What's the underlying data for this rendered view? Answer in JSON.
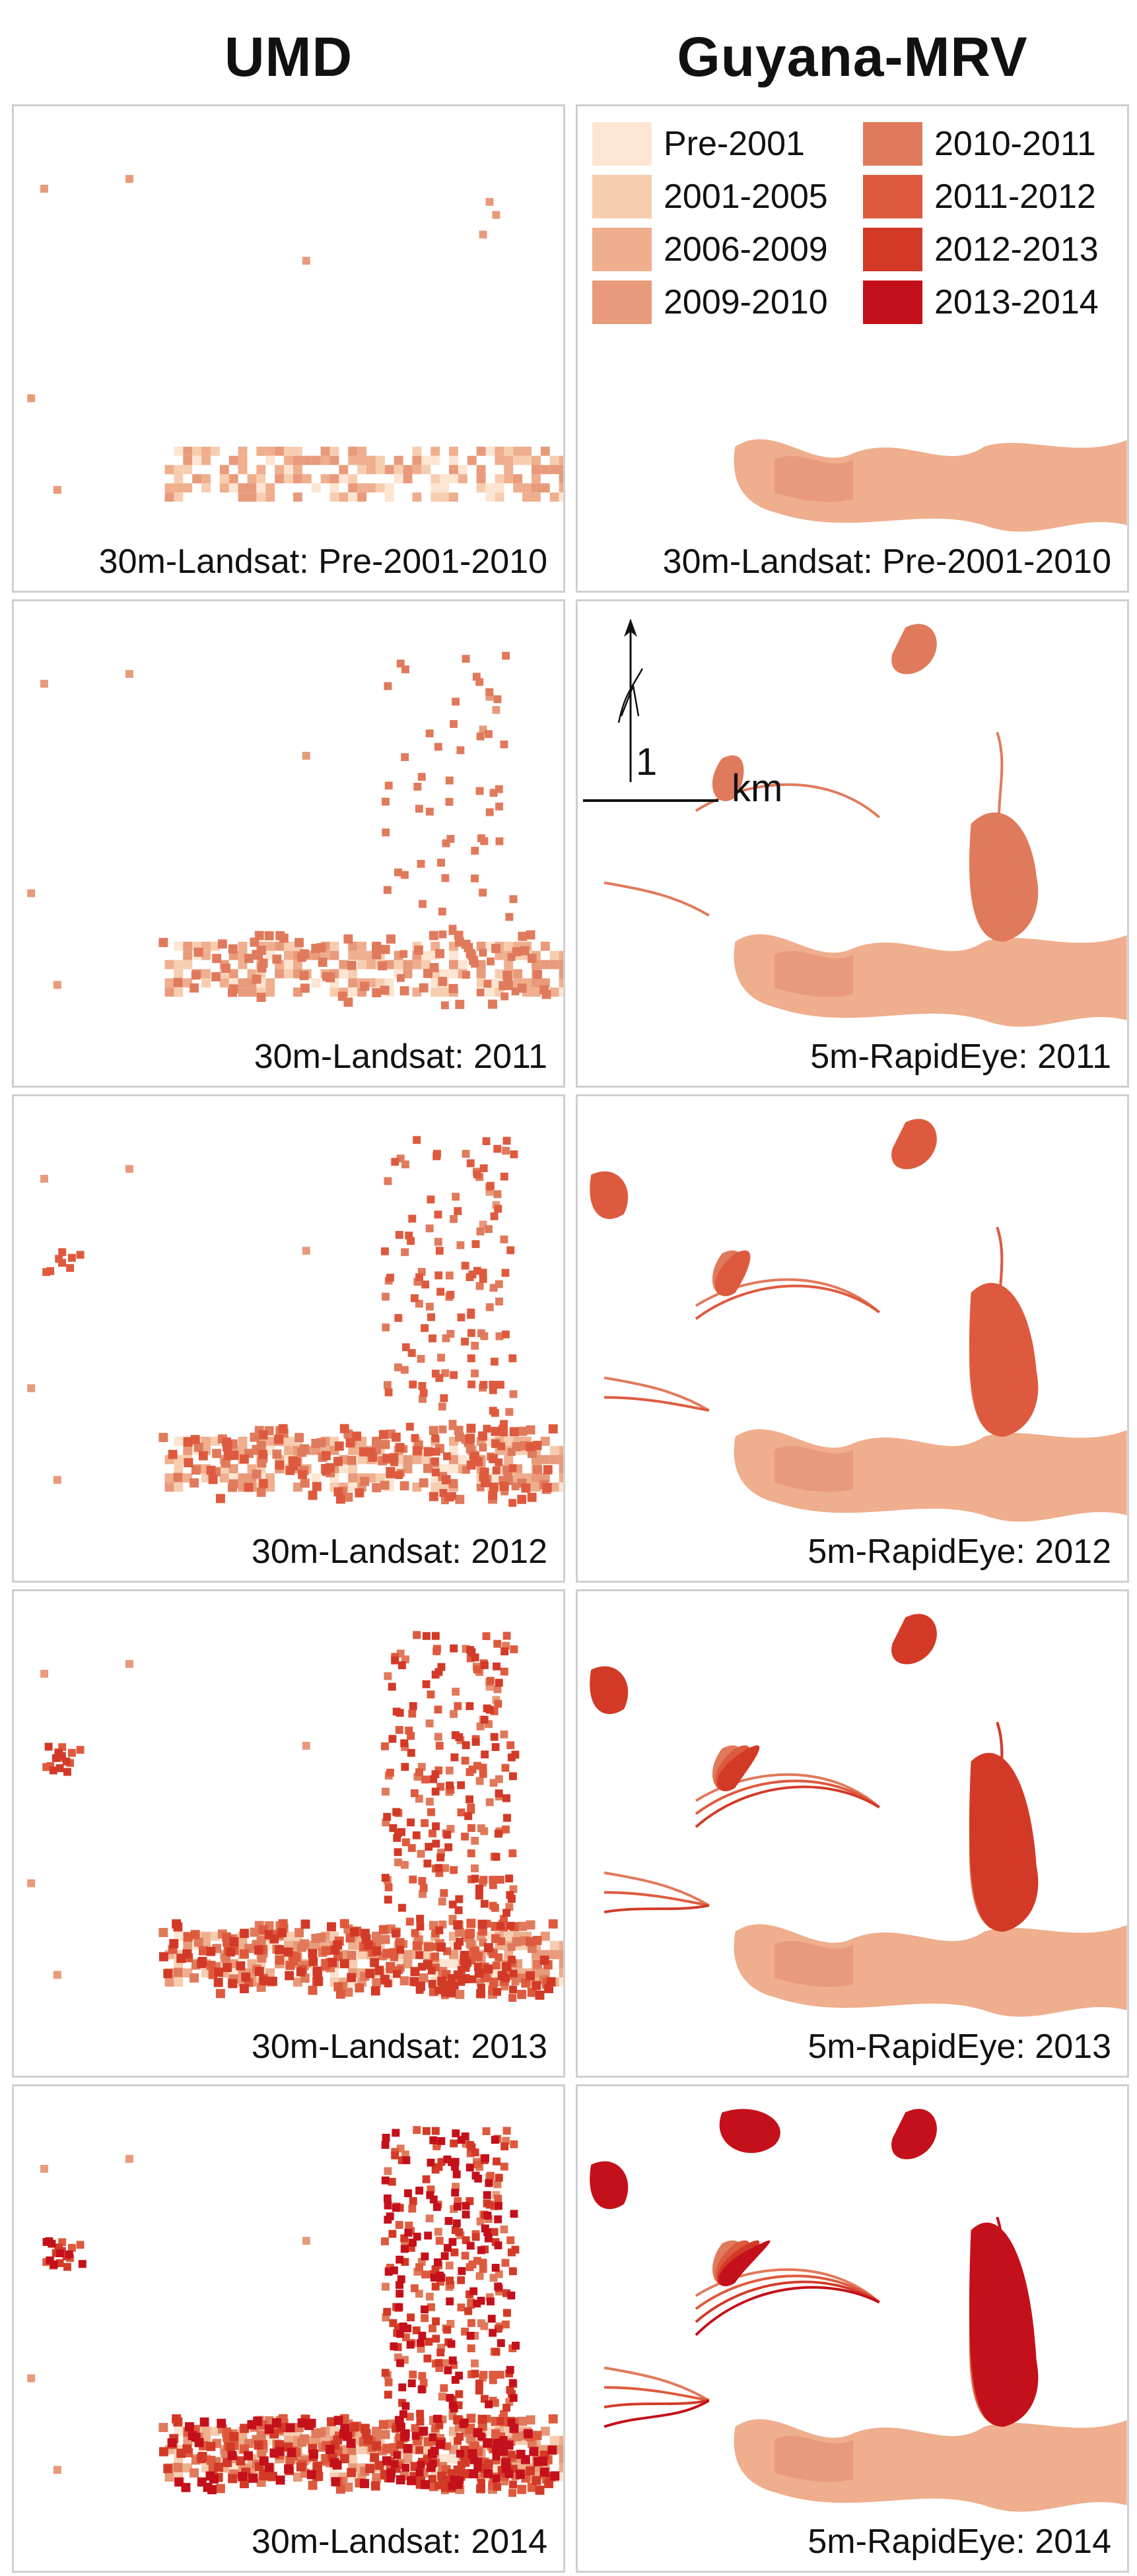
{
  "columns": {
    "left": "UMD",
    "right": "Guyana-MRV"
  },
  "legend": [
    {
      "label": "Pre-2001",
      "color": "#fde5d2"
    },
    {
      "label": "2010-2011",
      "color": "#e07a5c"
    },
    {
      "label": "2001-2005",
      "color": "#f7cdb0"
    },
    {
      "label": "2011-2012",
      "color": "#de5a3e"
    },
    {
      "label": "2006-2009",
      "color": "#efae8d"
    },
    {
      "label": "2012-2013",
      "color": "#d23a27"
    },
    {
      "label": "2009-2010",
      "color": "#e89a7b"
    },
    {
      "label": "2013-2014",
      "color": "#c4101a"
    }
  ],
  "scale_bar": {
    "value": "1",
    "unit": "km"
  },
  "rows": [
    {
      "left_caption": "30m-Landsat: Pre-2001-2010",
      "right_caption": "30m-Landsat: Pre-2001-2010"
    },
    {
      "left_caption": "30m-Landsat: 2011",
      "right_caption": "5m-RapidEye: 2011"
    },
    {
      "left_caption": "30m-Landsat: 2012",
      "right_caption": "5m-RapidEye: 2012"
    },
    {
      "left_caption": "30m-Landsat: 2013",
      "right_caption": "5m-RapidEye: 2013"
    },
    {
      "left_caption": "30m-Landsat: 2014",
      "right_caption": "5m-RapidEye: 2014"
    }
  ]
}
